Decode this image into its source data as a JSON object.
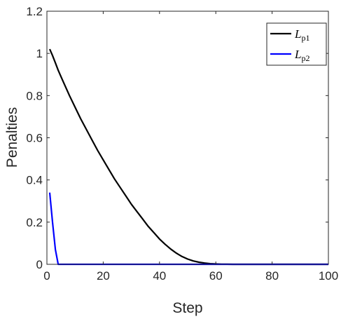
{
  "chart_data": {
    "type": "line",
    "xlabel": "Step",
    "ylabel": "Penalties",
    "xlim": [
      0,
      100
    ],
    "ylim": [
      0,
      1.2
    ],
    "xticks": [
      0,
      20,
      40,
      60,
      80,
      100
    ],
    "yticks": [
      0,
      0.2,
      0.4,
      0.6,
      0.8,
      1,
      1.2
    ],
    "xtick_labels": [
      "0",
      "20",
      "40",
      "60",
      "80",
      "100"
    ],
    "ytick_labels": [
      "0",
      "0.2",
      "0.4",
      "0.6",
      "0.8",
      "1",
      "1.2"
    ],
    "grid": false,
    "legend_position": "top-right",
    "series": [
      {
        "name": "Lp1",
        "legend_main": "L",
        "legend_sub": "p1",
        "color": "#000000",
        "x": [
          1,
          2,
          3,
          4,
          5,
          6,
          8,
          10,
          12,
          14,
          16,
          18,
          20,
          22,
          24,
          26,
          28,
          30,
          32,
          34,
          36,
          38,
          40,
          42,
          44,
          46,
          48,
          50,
          52,
          54,
          56,
          58,
          60,
          62,
          64,
          66,
          70,
          80,
          90,
          100
        ],
        "y": [
          1.02,
          0.99,
          0.955,
          0.92,
          0.89,
          0.86,
          0.8,
          0.745,
          0.69,
          0.64,
          0.59,
          0.54,
          0.495,
          0.45,
          0.405,
          0.365,
          0.325,
          0.285,
          0.25,
          0.215,
          0.18,
          0.15,
          0.12,
          0.095,
          0.072,
          0.053,
          0.037,
          0.025,
          0.016,
          0.01,
          0.006,
          0.003,
          0.0015,
          0.0008,
          0.0003,
          0.0001,
          0,
          0,
          0,
          0
        ]
      },
      {
        "name": "Lp2",
        "legend_main": "L",
        "legend_sub": "p2",
        "color": "#0000ff",
        "x": [
          1,
          2,
          3,
          4,
          5,
          10,
          20,
          40,
          60,
          80,
          100
        ],
        "y": [
          0.34,
          0.2,
          0.07,
          0.0,
          0.0,
          0,
          0,
          0,
          0,
          0,
          0
        ]
      }
    ]
  }
}
